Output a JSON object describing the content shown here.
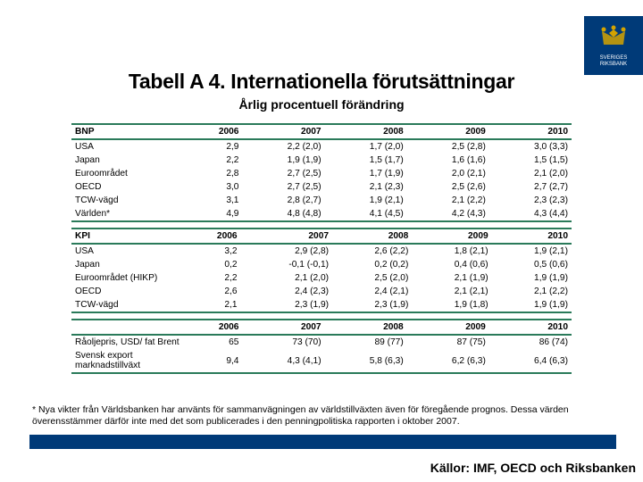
{
  "logo": {
    "line1": "SVERIGES",
    "line2": "RIKSBANK"
  },
  "title": "Tabell A 4. Internationella förutsättningar",
  "subtitle": "Årlig procentuell förändring",
  "years": [
    "2006",
    "2007",
    "2008",
    "2009",
    "2010"
  ],
  "colors": {
    "blue": "#003a78",
    "green": "#2a7a5a",
    "white": "#ffffff",
    "logoaccent": "#d4a300"
  },
  "font": {
    "title_pt": 23,
    "subtitle_pt": 14,
    "table_pt": 10.2,
    "footnote_pt": 10.5,
    "source_pt": 14
  },
  "table1": {
    "header": "BNP",
    "rows": [
      {
        "label": "USA",
        "v": [
          "2,9",
          "2,2 (2,0)",
          "1,7 (2,0)",
          "2,5 (2,8)",
          "3,0 (3,3)"
        ]
      },
      {
        "label": "Japan",
        "v": [
          "2,2",
          "1,9 (1,9)",
          "1,5 (1,7)",
          "1,6 (1,6)",
          "1,5 (1,5)"
        ]
      },
      {
        "label": "Euroområdet",
        "v": [
          "2,8",
          "2,7 (2,5)",
          "1,7 (1,9)",
          "2,0 (2,1)",
          "2,1 (2,0)"
        ]
      },
      {
        "label": "OECD",
        "v": [
          "3,0",
          "2,7 (2,5)",
          "2,1 (2,3)",
          "2,5 (2,6)",
          "2,7 (2,7)"
        ]
      },
      {
        "label": "TCW-vägd",
        "v": [
          "3,1",
          "2,8 (2,7)",
          "1,9 (2,1)",
          "2,1 (2,2)",
          "2,3 (2,3)"
        ]
      },
      {
        "label": "Världen*",
        "v": [
          "4,9",
          "4,8 (4,8)",
          "4,1 (4,5)",
          "4,2 (4,3)",
          "4,3 (4,4)"
        ]
      }
    ]
  },
  "table2": {
    "header": "KPI",
    "rows": [
      {
        "label": "USA",
        "v": [
          "3,2",
          "2,9 (2,8)",
          "2,6 (2,2)",
          "1,8 (2,1)",
          "1,9 (2,1)"
        ]
      },
      {
        "label": "Japan",
        "v": [
          "0,2",
          "-0,1 (-0,1)",
          "0,2 (0,2)",
          "0,4 (0,6)",
          "0,5 (0,6)"
        ]
      },
      {
        "label": "Euroområdet (HIKP)",
        "v": [
          "2,2",
          "2,1 (2,0)",
          "2,5 (2,0)",
          "2,1 (1,9)",
          "1,9 (1,9)"
        ]
      },
      {
        "label": "OECD",
        "v": [
          "2,6",
          "2,4 (2,3)",
          "2,4 (2,1)",
          "2,1 (2,1)",
          "2,1 (2,2)"
        ]
      },
      {
        "label": "TCW-vägd",
        "v": [
          "2,1",
          "2,3 (1,9)",
          "2,3 (1,9)",
          "1,9 (1,8)",
          "1,9 (1,9)"
        ]
      }
    ]
  },
  "table3": {
    "header": "",
    "rows": [
      {
        "label": "Råoljepris, USD/ fat Brent",
        "v": [
          "65",
          "73 (70)",
          "89 (77)",
          "87 (75)",
          "86 (74)"
        ]
      },
      {
        "label": "Svensk export marknadstillväxt",
        "v": [
          "9,4",
          "4,3 (4,1)",
          "5,8 (6,3)",
          "6,2 (6,3)",
          "6,4 (6,3)"
        ]
      }
    ]
  },
  "footnote": "* Nya vikter från Världsbanken har använts för sammanvägningen av världstillväxten även för föregående prognos. Dessa värden överensstämmer därför inte med det som publicerades i den penningpolitiska rapporten i oktober 2007.",
  "source": "Källor: IMF, OECD och Riksbanken"
}
